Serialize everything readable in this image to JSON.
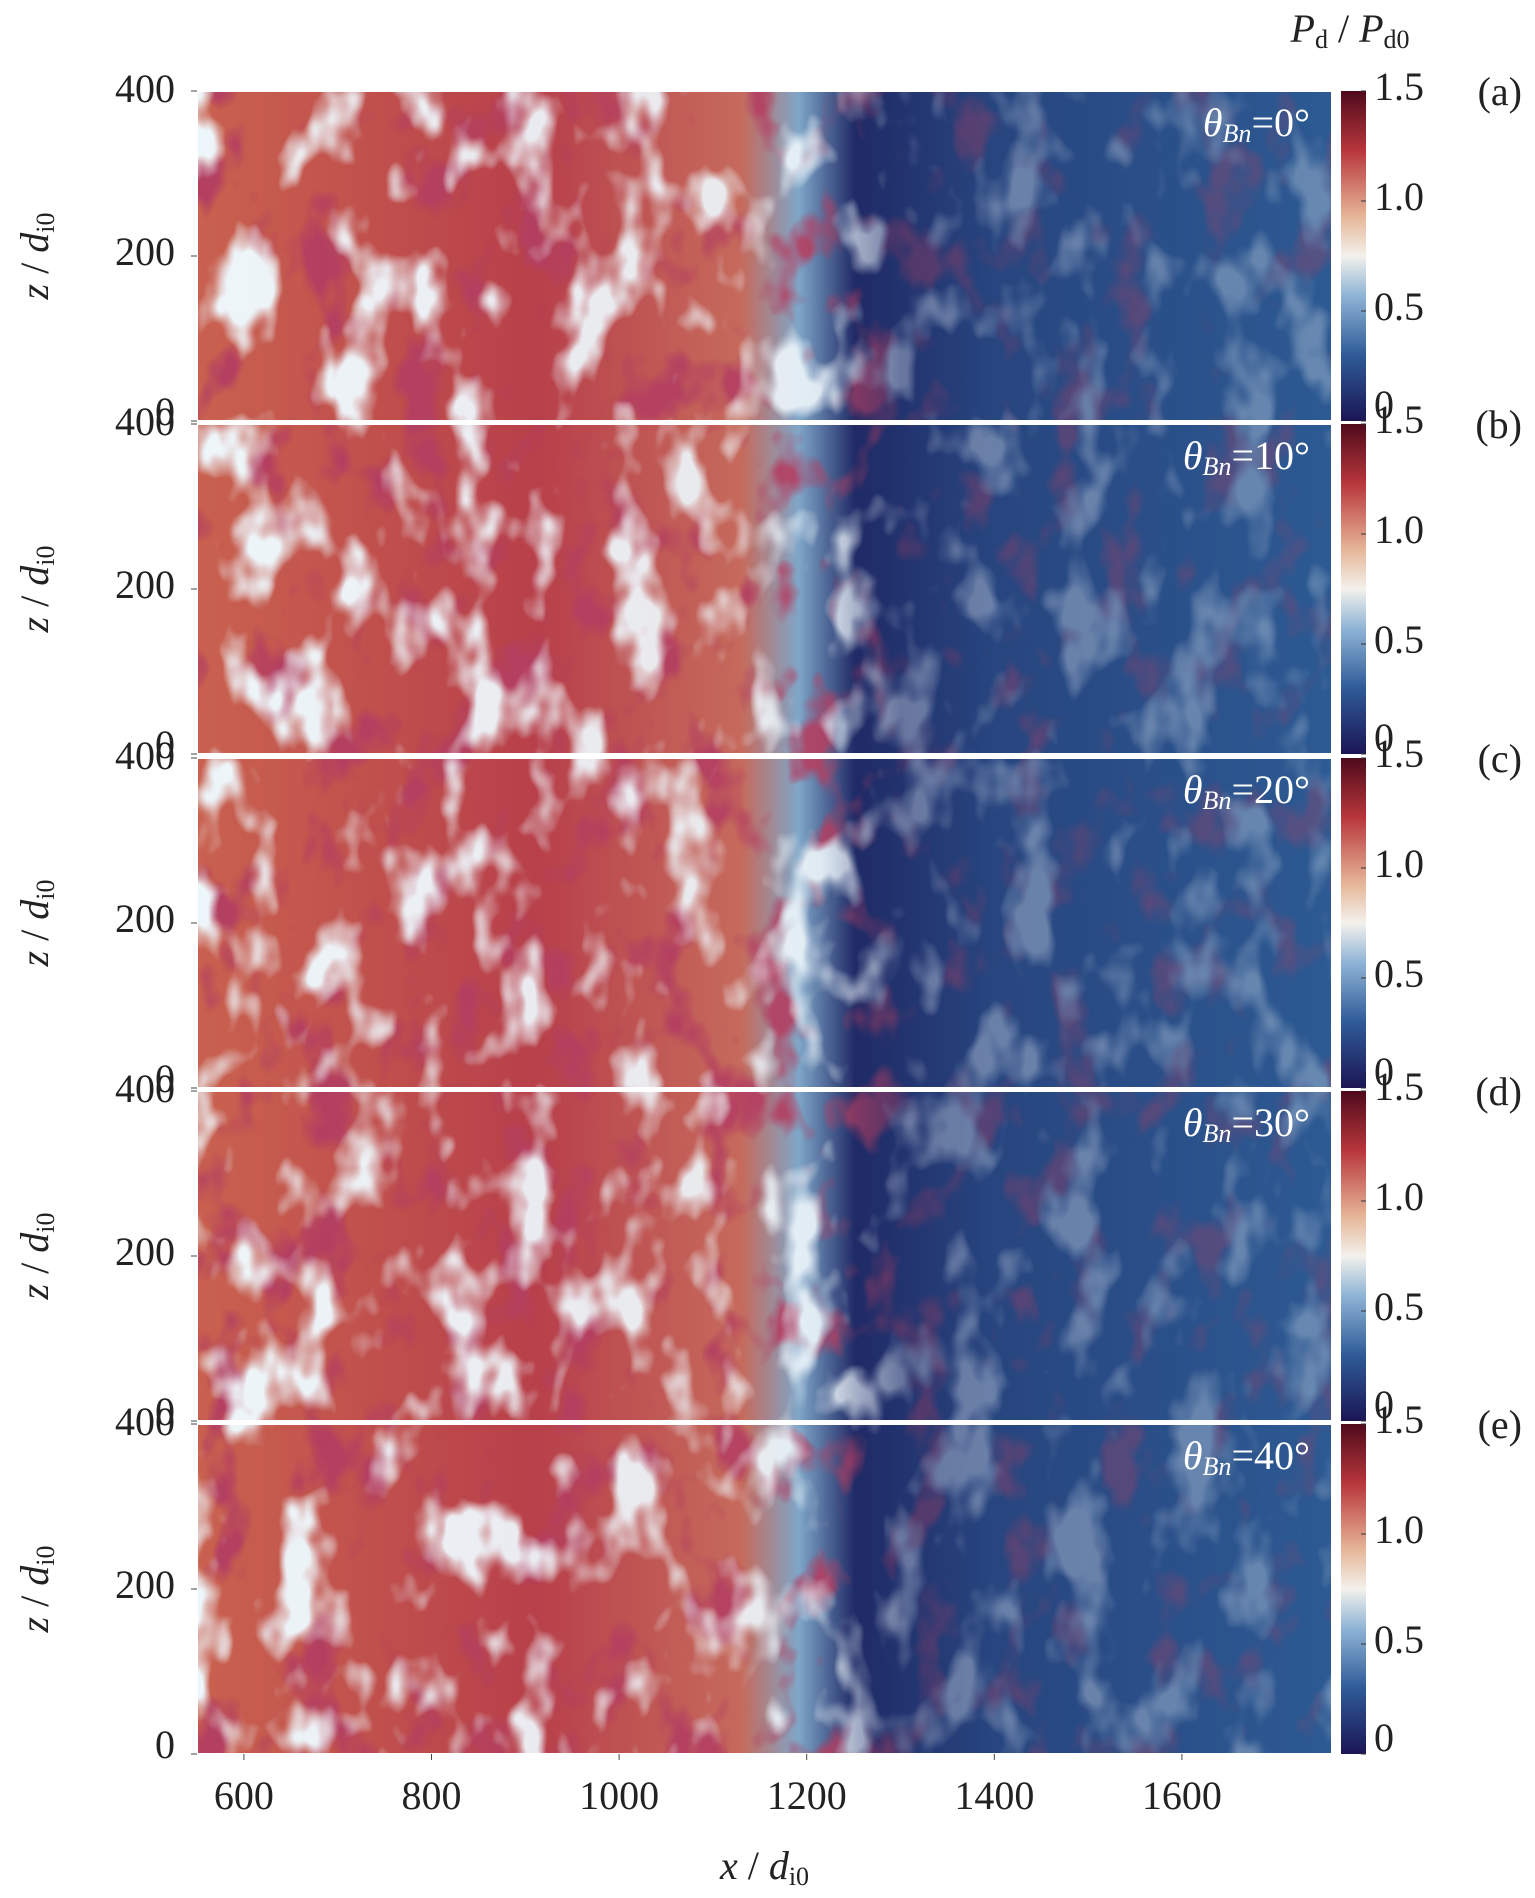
{
  "chart_data": [
    {
      "type": "heatmap",
      "label": "(a)",
      "annotation": [
        "θ",
        "Bn",
        "=0°"
      ],
      "ylabel": [
        "z",
        " / ",
        "d",
        "i0"
      ],
      "xlim": [
        550,
        1760
      ],
      "ylim": [
        0,
        400
      ],
      "yticks": [
        0,
        200,
        400
      ],
      "clim": [
        0,
        1.5
      ],
      "cticks": [
        0,
        0.5,
        {
          "value": 1,
          "label": "1.0"
        },
        1.5
      ],
      "colorbar_label": [
        "P",
        "d",
        " / ",
        "P",
        "d0"
      ]
    },
    {
      "type": "heatmap",
      "label": "(b)",
      "annotation": [
        "θ",
        "Bn",
        "=10°"
      ],
      "ylabel": [
        "z",
        " / ",
        "d",
        "i0"
      ],
      "xlim": [
        550,
        1760
      ],
      "ylim": [
        0,
        400
      ],
      "yticks": [
        0,
        200,
        400
      ],
      "clim": [
        0,
        1.5
      ],
      "cticks": [
        0,
        0.5,
        {
          "value": 1,
          "label": "1.0"
        },
        1.5
      ]
    },
    {
      "type": "heatmap",
      "label": "(c)",
      "annotation": [
        "θ",
        "Bn",
        "=20°"
      ],
      "ylabel": [
        "z",
        " / ",
        "d",
        "i0"
      ],
      "xlim": [
        550,
        1760
      ],
      "ylim": [
        0,
        400
      ],
      "yticks": [
        0,
        200,
        400
      ],
      "clim": [
        0,
        1.5
      ],
      "cticks": [
        0,
        0.5,
        {
          "value": 1,
          "label": "1.0"
        },
        1.5
      ]
    },
    {
      "type": "heatmap",
      "label": "(d)",
      "annotation": [
        "θ",
        "Bn",
        "=30°"
      ],
      "ylabel": [
        "z",
        " / ",
        "d",
        "i0"
      ],
      "xlim": [
        550,
        1760
      ],
      "ylim": [
        0,
        400
      ],
      "yticks": [
        0,
        200,
        400
      ],
      "clim": [
        0,
        1.5
      ],
      "cticks": [
        0,
        0.5,
        {
          "value": 1,
          "label": "1.0"
        },
        1.5
      ]
    },
    {
      "type": "heatmap",
      "label": "(e)",
      "annotation": [
        "θ",
        "Bn",
        "=40°"
      ],
      "ylabel": [
        "z",
        " / ",
        "d",
        "i0"
      ],
      "xlim": [
        550,
        1760
      ],
      "ylim": [
        0,
        400
      ],
      "yticks": [
        0,
        200,
        400
      ],
      "clim": [
        0,
        1.5
      ],
      "cticks": [
        0,
        0.5,
        {
          "value": 1,
          "label": "1.0"
        },
        1.5
      ],
      "xticks": [
        600,
        800,
        1000,
        1200,
        1400,
        1600
      ],
      "xlabel": [
        "x",
        " / ",
        "d",
        "i0"
      ]
    }
  ]
}
